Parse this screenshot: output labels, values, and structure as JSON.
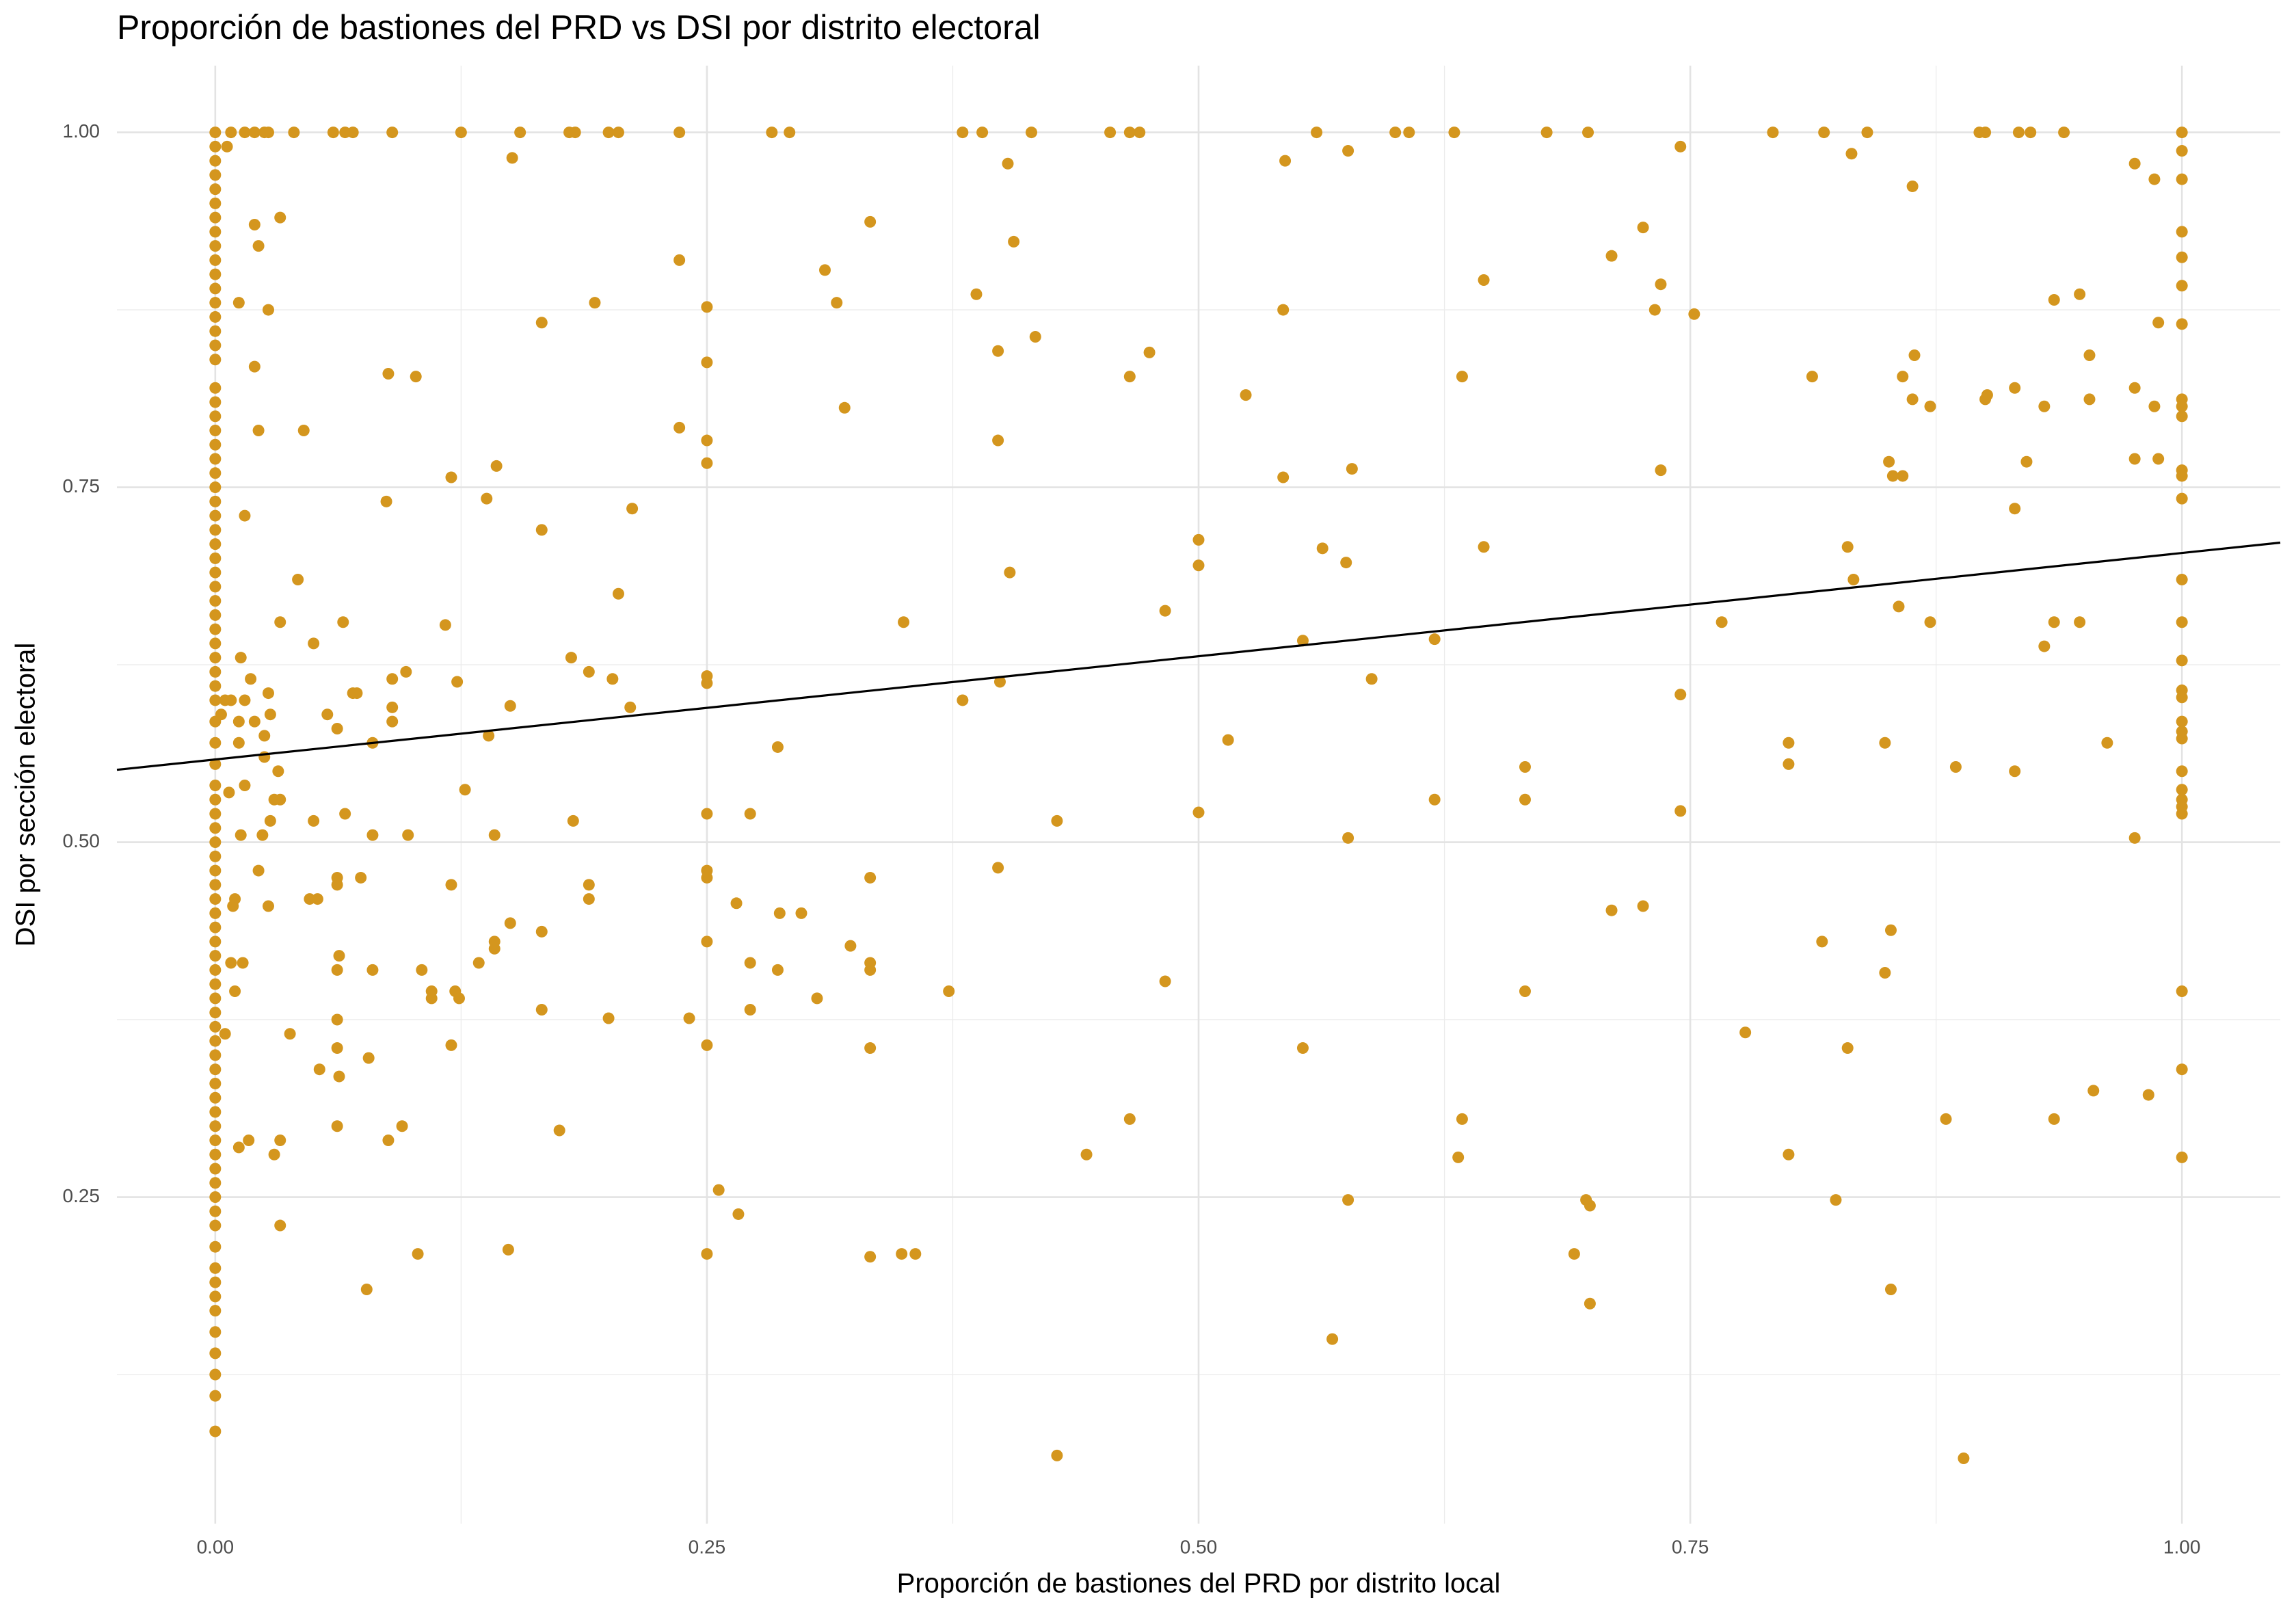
{
  "chart_data": {
    "type": "scatter",
    "title": "Proporción de bastiones del PRD vs DSI por distrito electoral",
    "x_label": "Proporción de bastiones del PRD por distrito local",
    "y_label": "DSI por sección electoral",
    "color": "#d4961e",
    "grid": true,
    "xlim": [
      -0.05,
      1.05
    ],
    "ylim": [
      0.02,
      1.047
    ],
    "xticks": [
      {
        "value": 0,
        "label": "0.00"
      },
      {
        "value": 0.25,
        "label": "0.25"
      },
      {
        "value": 0.5,
        "label": "0.50"
      },
      {
        "value": 0.75,
        "label": "0.75"
      },
      {
        "value": 1,
        "label": "1.00"
      }
    ],
    "yticks": [
      {
        "value": 0.25,
        "label": "0.25"
      },
      {
        "value": 0.5,
        "label": "0.50"
      },
      {
        "value": 0.75,
        "label": "0.75"
      },
      {
        "value": 1,
        "label": "1.00"
      }
    ],
    "x_minor_grid": [
      0.125,
      0.375,
      0.625,
      0.875
    ],
    "y_minor_grid": [
      0.125,
      0.375,
      0.625,
      0.875
    ],
    "fit_line": {
      "color": "#000000",
      "x": [
        -0.05,
        1.05
      ],
      "values": [
        0.551,
        0.711
      ]
    },
    "x": [
      0,
      0,
      0,
      0,
      0,
      0,
      0,
      0,
      0,
      0,
      0,
      0,
      0,
      0,
      0,
      0,
      0,
      0,
      0,
      0,
      0,
      0,
      0,
      0,
      0,
      0,
      0,
      0,
      0,
      0,
      0,
      0,
      0,
      0,
      0,
      0,
      0,
      0,
      0,
      0,
      0,
      0,
      0,
      0,
      0,
      0,
      0,
      0,
      0,
      0,
      0,
      0,
      0,
      0,
      0,
      0,
      0,
      0,
      0,
      0,
      0,
      0,
      0,
      0,
      0,
      0,
      0,
      0,
      0,
      0,
      0,
      0,
      0,
      0,
      0,
      0,
      0,
      0,
      0,
      0,
      0,
      0,
      0,
      0,
      0,
      0.008,
      0.015,
      0.02,
      0.025,
      0.027,
      0.04,
      0.06,
      0.066,
      0.07,
      0.09,
      0.125,
      0.155,
      0.18,
      0.183,
      0.2,
      0.205,
      0.236,
      0.283,
      0.292,
      0.38,
      0.39,
      0.415,
      0.455,
      0.465,
      0.47,
      0.56,
      0.6,
      0.607,
      0.63,
      0.677,
      0.698,
      0.792,
      0.818,
      0.84,
      0.897,
      0.9,
      0.917,
      0.923,
      0.94,
      0.006,
      0.012,
      0.02,
      0.022,
      0.033,
      0.02,
      0.027,
      0.022,
      0.045,
      0.015,
      0.042,
      0.033,
      0.065,
      0.05,
      0.013,
      0.018,
      0.027,
      0.005,
      0.008,
      0.015,
      0.003,
      0.02,
      0.028,
      0.012,
      0.025,
      0.057,
      0.062,
      0.07,
      0.072,
      0.09,
      0.097,
      0.09,
      0.09,
      0.08,
      0.012,
      0.025,
      0.032,
      0.015,
      0.007,
      0.03,
      0.033,
      0.028,
      0.013,
      0.024,
      0.05,
      0.066,
      0.08,
      0.098,
      0.022,
      0.062,
      0.074,
      0.062,
      0.052,
      0.048,
      0.01,
      0.009,
      0.027,
      0.008,
      0.014,
      0.063,
      0.062,
      0.08,
      0.01,
      0.062,
      0.005,
      0.038,
      0.062,
      0.078,
      0.053,
      0.063,
      0.062,
      0.095,
      0.088,
      0.012,
      0.017,
      0.033,
      0.03,
      0.033,
      0.077,
      0.103,
      0.088,
      0.102,
      0.087,
      0.12,
      0.143,
      0.138,
      0.166,
      0.193,
      0.151,
      0.166,
      0.212,
      0.205,
      0.117,
      0.123,
      0.181,
      0.19,
      0.202,
      0.211,
      0.15,
      0.139,
      0.127,
      0.142,
      0.182,
      0.12,
      0.15,
      0.142,
      0.142,
      0.134,
      0.166,
      0.19,
      0.19,
      0.105,
      0.11,
      0.11,
      0.122,
      0.124,
      0.166,
      0.2,
      0.12,
      0.175,
      0.149,
      0.236,
      0.25,
      0.25,
      0.236,
      0.25,
      0.25,
      0.25,
      0.25,
      0.25,
      0.25,
      0.25,
      0.25,
      0.241,
      0.25,
      0.256,
      0.266,
      0.25,
      0.265,
      0.272,
      0.272,
      0.272,
      0.286,
      0.286,
      0.287,
      0.298,
      0.306,
      0.31,
      0.316,
      0.32,
      0.333,
      0.323,
      0.333,
      0.333,
      0.333,
      0.333,
      0.333,
      0.349,
      0.356,
      0.35,
      0.38,
      0.373,
      0.387,
      0.398,
      0.398,
      0.403,
      0.406,
      0.417,
      0.404,
      0.399,
      0.398,
      0.428,
      0.428,
      0.443,
      0.465,
      0.475,
      0.465,
      0.483,
      0.483,
      0.5,
      0.5,
      0.5,
      0.515,
      0.524,
      0.544,
      0.543,
      0.543,
      0.553,
      0.553,
      0.563,
      0.568,
      0.575,
      0.576,
      0.578,
      0.576,
      0.576,
      0.588,
      0.62,
      0.62,
      0.634,
      0.634,
      0.632,
      0.645,
      0.645,
      0.666,
      0.666,
      0.666,
      0.691,
      0.697,
      0.699,
      0.699,
      0.71,
      0.71,
      0.726,
      0.726,
      0.732,
      0.735,
      0.735,
      0.745,
      0.752,
      0.745,
      0.745,
      0.766,
      0.778,
      0.8,
      0.8,
      0.8,
      0.812,
      0.817,
      0.824,
      0.832,
      0.83,
      0.833,
      0.83,
      0.863,
      0.849,
      0.849,
      0.851,
      0.853,
      0.858,
      0.856,
      0.858,
      0.864,
      0.863,
      0.872,
      0.872,
      0.852,
      0.852,
      0.88,
      0.885,
      0.889,
      0.9,
      0.901,
      0.915,
      0.921,
      0.915,
      0.915,
      0.93,
      0.935,
      0.93,
      0.935,
      0.948,
      0.953,
      0.953,
      0.948,
      0.962,
      0.955,
      0.935,
      0.976,
      0.976,
      0.976,
      0.976,
      0.986,
      0.988,
      0.988,
      0.986,
      0.983,
      1,
      1,
      1,
      1,
      1,
      1,
      1,
      1,
      1,
      1,
      1,
      1,
      1,
      1,
      1,
      1,
      1,
      1,
      1,
      1,
      1,
      1,
      1,
      1,
      1,
      1,
      1,
      1,
      1
    ],
    "values": [
      0.085,
      0.11,
      0.125,
      0.14,
      0.155,
      0.17,
      0.18,
      0.19,
      0.2,
      0.215,
      0.23,
      0.24,
      0.25,
      0.26,
      0.27,
      0.28,
      0.29,
      0.3,
      0.31,
      0.32,
      0.33,
      0.34,
      0.35,
      0.36,
      0.37,
      0.38,
      0.39,
      0.4,
      0.41,
      0.42,
      0.43,
      0.44,
      0.45,
      0.46,
      0.47,
      0.48,
      0.49,
      0.5,
      0.51,
      0.52,
      0.53,
      0.54,
      0.555,
      0.57,
      0.585,
      0.6,
      0.61,
      0.62,
      0.63,
      0.64,
      0.65,
      0.66,
      0.67,
      0.68,
      0.69,
      0.7,
      0.71,
      0.72,
      0.73,
      0.74,
      0.75,
      0.76,
      0.77,
      0.78,
      0.79,
      0.8,
      0.81,
      0.82,
      0.84,
      0.85,
      0.86,
      0.87,
      0.88,
      0.89,
      0.9,
      0.91,
      0.92,
      0.93,
      0.94,
      0.95,
      0.96,
      0.97,
      0.98,
      0.99,
      1,
      1,
      1,
      1,
      1,
      1,
      1,
      1,
      1,
      1,
      1,
      1,
      1,
      1,
      1,
      1,
      1,
      1,
      1,
      1,
      1,
      1,
      1,
      1,
      1,
      1,
      1,
      1,
      1,
      1,
      1,
      1,
      1,
      1,
      1,
      1,
      1,
      1,
      1,
      1,
      0.99,
      0.88,
      0.935,
      0.92,
      0.94,
      0.835,
      0.875,
      0.79,
      0.79,
      0.73,
      0.685,
      0.655,
      0.655,
      0.64,
      0.63,
      0.615,
      0.605,
      0.6,
      0.6,
      0.6,
      0.59,
      0.585,
      0.59,
      0.585,
      0.575,
      0.59,
      0.58,
      0.605,
      0.605,
      0.615,
      0.62,
      0.595,
      0.585,
      0.57,
      0.57,
      0.56,
      0.55,
      0.54,
      0.535,
      0.53,
      0.53,
      0.515,
      0.505,
      0.505,
      0.515,
      0.52,
      0.505,
      0.505,
      0.48,
      0.475,
      0.475,
      0.47,
      0.46,
      0.46,
      0.46,
      0.455,
      0.455,
      0.415,
      0.415,
      0.42,
      0.41,
      0.41,
      0.395,
      0.375,
      0.365,
      0.365,
      0.355,
      0.348,
      0.34,
      0.335,
      0.3,
      0.3,
      0.29,
      0.285,
      0.29,
      0.29,
      0.28,
      0.23,
      0.185,
      0.21,
      0.83,
      0.828,
      0.74,
      0.757,
      0.765,
      0.742,
      0.866,
      0.88,
      0.982,
      0.72,
      0.735,
      0.675,
      0.653,
      0.613,
      0.63,
      0.62,
      0.615,
      0.595,
      0.596,
      0.575,
      0.537,
      0.505,
      0.515,
      0.47,
      0.443,
      0.43,
      0.425,
      0.415,
      0.437,
      0.47,
      0.46,
      0.41,
      0.395,
      0.39,
      0.395,
      0.39,
      0.382,
      0.376,
      0.357,
      0.297,
      0.213,
      0.91,
      0.877,
      0.838,
      0.792,
      0.783,
      0.767,
      0.617,
      0.612,
      0.52,
      0.48,
      0.475,
      0.43,
      0.376,
      0.357,
      0.255,
      0.238,
      0.21,
      0.457,
      0.52,
      0.415,
      0.382,
      0.567,
      0.41,
      0.45,
      0.45,
      0.39,
      0.903,
      0.88,
      0.806,
      0.937,
      0.427,
      0.475,
      0.415,
      0.41,
      0.355,
      0.208,
      0.21,
      0.21,
      0.655,
      0.6,
      0.395,
      0.886,
      0.846,
      0.783,
      0.978,
      0.923,
      0.856,
      0.69,
      0.613,
      0.482,
      0.515,
      0.068,
      0.28,
      0.828,
      0.845,
      0.305,
      0.663,
      0.402,
      0.713,
      0.695,
      0.521,
      0.572,
      0.815,
      0.98,
      0.875,
      0.757,
      0.642,
      0.355,
      0.707,
      0.15,
      0.697,
      0.987,
      0.763,
      0.503,
      0.248,
      0.615,
      0.643,
      0.53,
      0.828,
      0.305,
      0.278,
      0.896,
      0.708,
      0.553,
      0.53,
      0.395,
      0.21,
      0.248,
      0.244,
      0.175,
      0.913,
      0.452,
      0.933,
      0.455,
      0.875,
      0.893,
      0.762,
      0.99,
      0.872,
      0.604,
      0.522,
      0.655,
      0.366,
      0.57,
      0.555,
      0.28,
      0.828,
      0.43,
      0.248,
      0.985,
      0.708,
      0.685,
      0.355,
      0.962,
      0.57,
      0.408,
      0.768,
      0.758,
      0.758,
      0.666,
      0.828,
      0.843,
      0.812,
      0.807,
      0.655,
      0.438,
      0.185,
      0.305,
      0.553,
      0.066,
      0.812,
      0.815,
      0.82,
      0.768,
      0.735,
      0.55,
      0.638,
      0.655,
      0.807,
      0.882,
      0.886,
      0.843,
      0.812,
      0.655,
      0.57,
      0.325,
      0.305,
      0.978,
      0.82,
      0.77,
      0.503,
      0.967,
      0.866,
      0.77,
      0.807,
      0.322,
      1,
      0.987,
      0.967,
      0.93,
      0.912,
      0.892,
      0.865,
      0.812,
      0.807,
      0.8,
      0.762,
      0.758,
      0.742,
      0.685,
      0.655,
      0.628,
      0.607,
      0.602,
      0.585,
      0.578,
      0.573,
      0.55,
      0.537,
      0.53,
      0.525,
      0.52,
      0.395,
      0.34,
      0.278
    ]
  }
}
